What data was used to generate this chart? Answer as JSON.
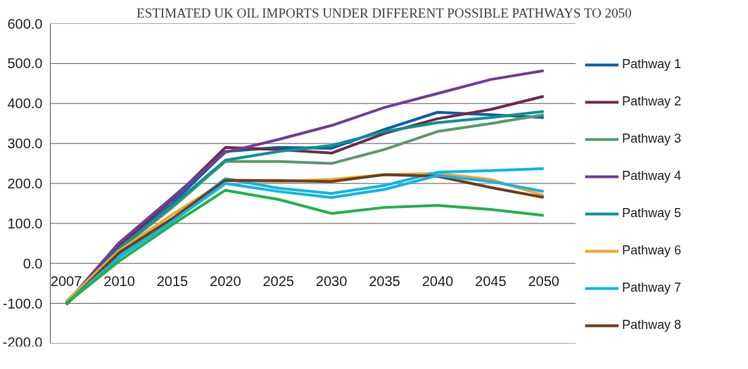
{
  "chart_data": {
    "type": "line",
    "title": "ESTIMATED UK OIL IMPORTS UNDER DIFFERENT POSSIBLE PATHWAYS TO 2050",
    "categories": [
      "2007",
      "2010",
      "2015",
      "2020",
      "2025",
      "2030",
      "2035",
      "2040",
      "2045",
      "2050"
    ],
    "ylim": [
      -200,
      600
    ],
    "yticks": [
      {
        "value": -200,
        "label": "-200.0"
      },
      {
        "value": -100,
        "label": "-100.0"
      },
      {
        "value": 0,
        "label": "0.0"
      },
      {
        "value": 100,
        "label": "100.0"
      },
      {
        "value": 200,
        "label": "200.0"
      },
      {
        "value": 300,
        "label": "300.0"
      },
      {
        "value": 400,
        "label": "400.0"
      },
      {
        "value": 500,
        "label": "500.0"
      },
      {
        "value": 600,
        "label": "600.0"
      }
    ],
    "grid": "y",
    "legend": "right",
    "series": [
      {
        "name": "Pathway 1",
        "color": "#0d5fa8",
        "values": [
          -100,
          40,
          150,
          280,
          290,
          288,
          335,
          378,
          372,
          365
        ]
      },
      {
        "name": "Pathway 2",
        "color": "#6e2c4f",
        "values": [
          -100,
          45,
          160,
          290,
          285,
          276,
          325,
          362,
          385,
          418
        ]
      },
      {
        "name": "Pathway 3",
        "color": "#5a9a72",
        "values": [
          -100,
          35,
          140,
          255,
          255,
          250,
          285,
          330,
          350,
          372
        ]
      },
      {
        "name": "Pathway 4",
        "color": "#713e97",
        "values": [
          -100,
          52,
          165,
          278,
          310,
          345,
          390,
          425,
          460,
          482
        ]
      },
      {
        "name": "Pathway 5",
        "color": "#0e9294",
        "values": [
          -100,
          38,
          145,
          258,
          280,
          295,
          330,
          352,
          365,
          380
        ]
      },
      {
        "name": "Pathway 6",
        "color": "#f4a430",
        "values": [
          -95,
          32,
          122,
          207,
          205,
          210,
          222,
          225,
          210,
          170
        ]
      },
      {
        "name": "Pathway 7",
        "color": "#12b5e8",
        "values": [
          -100,
          20,
          110,
          212,
          188,
          175,
          195,
          228,
          232,
          237
        ]
      },
      {
        "name": "Pathway 8",
        "color": "#6e3f1e",
        "values": [
          -103,
          27,
          112,
          208,
          207,
          205,
          222,
          218,
          190,
          165
        ]
      },
      {
        "color": "#12b5e8",
        "values": [
          -100,
          15,
          105,
          200,
          180,
          165,
          185,
          220,
          205,
          180
        ]
      },
      {
        "color": "#22b24c",
        "values": [
          -100,
          6,
          97,
          183,
          160,
          125,
          140,
          145,
          135,
          120
        ]
      }
    ]
  }
}
